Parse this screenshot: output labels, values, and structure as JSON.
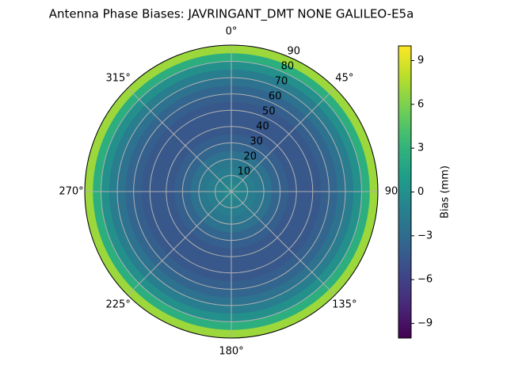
{
  "chart_data": {
    "type": "polar-contour",
    "title": "Antenna Phase Biases: JAVRINGANT_DMT  NONE GALILEO-E5a",
    "x": [
      2.5,
      7.5,
      12.5,
      17.5,
      22.5,
      27.5,
      32.5,
      37.5,
      42.5,
      47.5,
      52.5,
      57.5,
      62.5,
      67.5,
      72.5,
      77.5,
      82.5,
      87.5
    ],
    "values": [
      -0.5,
      -1,
      -1.5,
      -2,
      -2.5,
      -3.5,
      -4,
      -4.5,
      -4.5,
      -4.5,
      -4.5,
      -4,
      -3.5,
      -2.5,
      -1.5,
      0,
      2.5,
      7
    ],
    "rlim": [
      0,
      90
    ],
    "rticks": [
      10,
      20,
      30,
      40,
      50,
      60,
      70,
      80,
      90
    ],
    "thetaticks": [
      {
        "value": 0,
        "label": "0°"
      },
      {
        "value": 45,
        "label": "45°"
      },
      {
        "value": 90,
        "label": "90"
      },
      {
        "value": 135,
        "label": "135°"
      },
      {
        "value": 180,
        "label": "180°"
      },
      {
        "value": 225,
        "label": "225°"
      },
      {
        "value": 270,
        "label": "270°"
      },
      {
        "value": 315,
        "label": "315°"
      }
    ],
    "colormap": "viridis",
    "grid": true,
    "colorbar": {
      "label": "Bias (mm)",
      "lim": [
        -10,
        10
      ],
      "ticks": [
        {
          "value": -9,
          "label": "−9"
        },
        {
          "value": -6,
          "label": "−6"
        },
        {
          "value": -3,
          "label": "−3"
        },
        0,
        3,
        6,
        9
      ]
    }
  }
}
